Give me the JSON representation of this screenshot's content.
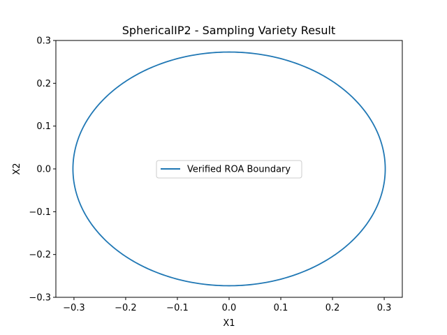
{
  "chart_data": {
    "type": "line",
    "title": "SphericalIP2 - Sampling Variety Result",
    "xlabel": "X1",
    "ylabel": "X2",
    "xlim": [
      -0.335,
      0.335
    ],
    "ylim": [
      -0.3,
      0.3
    ],
    "xticks": [
      -0.3,
      -0.2,
      -0.1,
      0.0,
      0.1,
      0.2,
      0.3
    ],
    "xtick_labels": [
      "−0.3",
      "−0.2",
      "−0.1",
      "0.0",
      "0.1",
      "0.2",
      "0.3"
    ],
    "yticks": [
      -0.3,
      -0.2,
      -0.1,
      0.0,
      0.1,
      0.2,
      0.3
    ],
    "ytick_labels": [
      "−0.3",
      "−0.2",
      "−0.1",
      "0.0",
      "0.1",
      "0.2",
      "0.3"
    ],
    "grid": false,
    "legend_position": "center",
    "series": [
      {
        "name": "Verified ROA Boundary",
        "color": "#1f77b4",
        "shape": "ellipse",
        "center": [
          0.0,
          0.0
        ],
        "x_radius": 0.302,
        "y_radius": 0.273
      }
    ]
  }
}
